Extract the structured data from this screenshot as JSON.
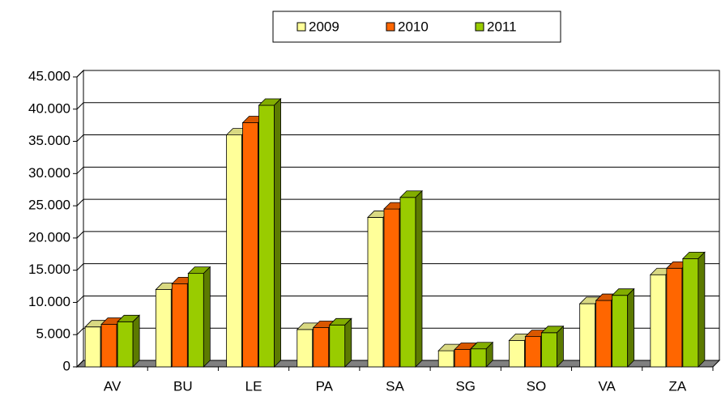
{
  "chart_data": {
    "type": "bar3d",
    "categories": [
      "AV",
      "BU",
      "LE",
      "PA",
      "SA",
      "SG",
      "SO",
      "VA",
      "ZA"
    ],
    "series": [
      {
        "name": "2009",
        "color": "#ffff99",
        "values": [
          6200,
          12000,
          36000,
          5800,
          23200,
          2500,
          4100,
          9800,
          14300
        ]
      },
      {
        "name": "2010",
        "color": "#ff6600",
        "values": [
          6600,
          12900,
          37900,
          6100,
          24500,
          2700,
          4700,
          10300,
          15300
        ]
      },
      {
        "name": "2011",
        "color": "#99cc00",
        "values": [
          7000,
          14500,
          40600,
          6500,
          26300,
          2800,
          5300,
          11100,
          16800
        ]
      }
    ],
    "ylim": [
      0,
      45000
    ],
    "yticks": [
      0,
      {
        "value": 5000,
        "label": "5.000"
      },
      {
        "value": 10000,
        "label": "10.000"
      },
      {
        "value": 15000,
        "label": "15.000"
      },
      {
        "value": 20000,
        "label": "20.000"
      },
      {
        "value": 25000,
        "label": "25.000"
      },
      {
        "value": 30000,
        "label": "30.000"
      },
      {
        "value": 35000,
        "label": "35.000"
      },
      {
        "value": 40000,
        "label": "40.000"
      },
      {
        "value": 45000,
        "label": "45.000"
      }
    ],
    "grid": true,
    "legend": "top"
  }
}
